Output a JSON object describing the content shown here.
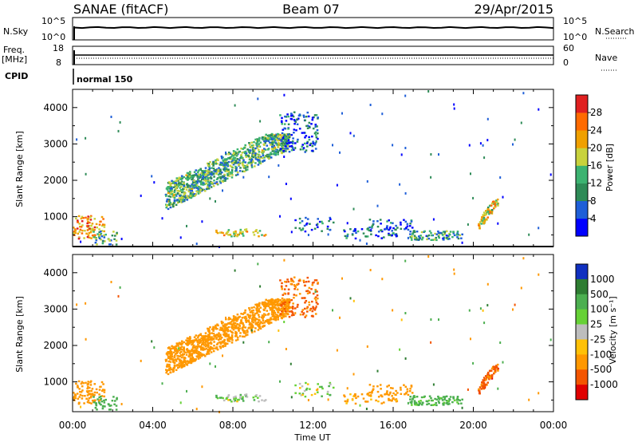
{
  "header": {
    "station": "SANAE (fitACF)",
    "beam": "Beam 07",
    "date": "29/Apr/2015"
  },
  "panels": {
    "nsky_label": "N.Sky",
    "nsky_ticks": [
      "10^5",
      "10^0"
    ],
    "nsearch_label": "N.Search",
    "nsearch_ticks": [
      "10^5",
      "10^0"
    ],
    "freq_label": "Freq.",
    "freq_unit": "[MHz]",
    "freq_ticks": [
      "18",
      "8"
    ],
    "nave_label": "Nave",
    "nave_ticks": [
      "60",
      "0"
    ],
    "cpid_label": "CPID",
    "cpid_value": "normal 150"
  },
  "axes": {
    "xlabel": "Time UT",
    "ylabel": "Slant Range [km]",
    "x_ticks": [
      "00:00",
      "04:00",
      "08:00",
      "12:00",
      "16:00",
      "20:00",
      "00:00"
    ],
    "y_ticks": [
      "1000",
      "2000",
      "3000",
      "4000"
    ],
    "power_colorbar_label": "Power [dB]",
    "power_ticks": [
      "4",
      "8",
      "12",
      "16",
      "20",
      "24",
      "28"
    ],
    "velocity_colorbar_label": "Velocity [m s⁻¹]",
    "velocity_ticks": [
      "1000",
      "500",
      "100",
      "25",
      "-25",
      "-100",
      "-500",
      "-1000"
    ]
  },
  "chart_data": {
    "type": "heatmap",
    "title": "SANAE (fitACF)  Beam 07  29/Apr/2015",
    "xlabel": "Time UT",
    "ylabel": "Slant Range [km]",
    "xlim": [
      0,
      24
    ],
    "ylim": [
      180,
      4500
    ],
    "power_scale": {
      "label": "Power [dB]",
      "min": 0,
      "max": 30,
      "colors": [
        "#0000ff",
        "#1f5fd8",
        "#2e8b57",
        "#3cb371",
        "#c8d23c",
        "#f0a000",
        "#ff6a00",
        "#e02020"
      ]
    },
    "velocity_scale": {
      "label": "Velocity [m s⁻¹]",
      "levels": [
        1000,
        500,
        100,
        25,
        -25,
        -100,
        -500,
        -1000
      ],
      "colors": [
        "#1030c0",
        "#2e7d32",
        "#4caf50",
        "#66d136",
        "#bdbdbd",
        "#ffc107",
        "#ff9800",
        "#f45500",
        "#e00000"
      ]
    },
    "echo_regions": [
      {
        "t0": 0.0,
        "t1": 1.6,
        "r0": 420,
        "r1": 1050,
        "power": 22,
        "velocity": -300,
        "density": 0.55
      },
      {
        "t0": 1.0,
        "t1": 2.2,
        "r0": 260,
        "r1": 620,
        "power": 12,
        "velocity": 250,
        "density": 0.5
      },
      {
        "t0": 4.6,
        "t1": 10.8,
        "r0": 1200,
        "r1": 3300,
        "power": 12,
        "velocity": -250,
        "density": 0.45,
        "slope": true
      },
      {
        "t0": 10.3,
        "t1": 12.2,
        "r0": 2800,
        "r1": 3900,
        "power": 6,
        "velocity": -600,
        "density": 0.4
      },
      {
        "t0": 7.0,
        "t1": 9.6,
        "r0": 480,
        "r1": 680,
        "power": 18,
        "velocity": 60,
        "density": 0.55
      },
      {
        "t0": 11.0,
        "t1": 13.0,
        "r0": 600,
        "r1": 1000,
        "power": 6,
        "velocity": 40,
        "density": 0.25
      },
      {
        "t0": 13.5,
        "t1": 16.4,
        "r0": 420,
        "r1": 700,
        "power": 8,
        "velocity": -150,
        "density": 0.4
      },
      {
        "t0": 14.6,
        "t1": 17.0,
        "r0": 650,
        "r1": 950,
        "power": 6,
        "velocity": -200,
        "density": 0.35
      },
      {
        "t0": 16.8,
        "t1": 19.4,
        "r0": 380,
        "r1": 640,
        "power": 10,
        "velocity": 150,
        "density": 0.85
      },
      {
        "t0": 20.2,
        "t1": 21.2,
        "r0": 650,
        "r1": 1500,
        "power": 18,
        "velocity": -700,
        "density": 0.6,
        "slope": true
      }
    ]
  }
}
